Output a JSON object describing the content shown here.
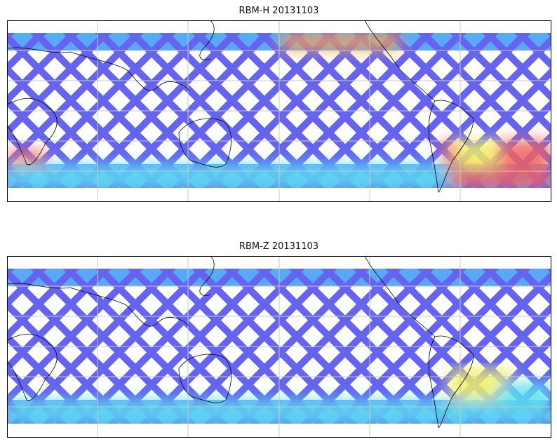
{
  "panels": [
    {
      "title": "RBM-H 20131103"
    },
    {
      "title": "RBM-Z 20131103"
    }
  ],
  "colors": {
    "track_low": "#6464f0",
    "band_mid": "#5aa8f8",
    "cyan": "#5ae0f0",
    "yellow": "#f0f060",
    "orange": "#f8a050",
    "red": "#f06060",
    "grid": "#c8c8c8",
    "coast": "#000000"
  }
}
